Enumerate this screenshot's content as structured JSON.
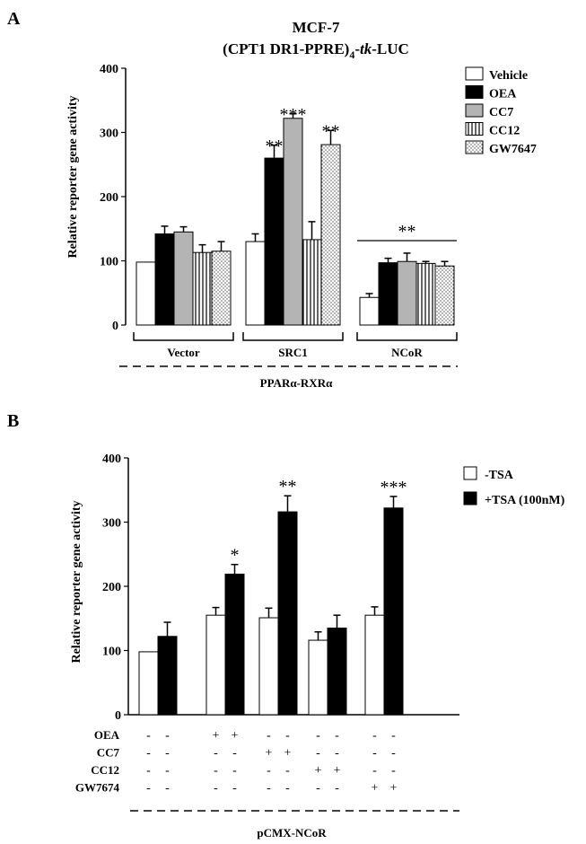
{
  "chart_data": [
    {
      "panel": "A",
      "type": "bar",
      "title": "MCF-7",
      "subtitle": {
        "pre": "(CPT1 DR1-PPRE)",
        "sub": "4",
        "dash1": "-",
        "italic": "tk",
        "post": "-LUC"
      },
      "ylabel": "Relative reporter gene activity",
      "ylim": [
        0,
        400
      ],
      "yticks": [
        "0",
        "100",
        "200",
        "300",
        "400"
      ],
      "groups": [
        "Vector",
        "SRC1",
        "NCoR"
      ],
      "bottom_label": "PPARα-RXRα",
      "legend_position": "top-right",
      "series": [
        {
          "name": "Vehicle",
          "fill": "white",
          "values": [
            98,
            130,
            43
          ],
          "errors": [
            0,
            12,
            6
          ]
        },
        {
          "name": "OEA",
          "fill": "black",
          "values": [
            142,
            260,
            97
          ],
          "errors": [
            12,
            20,
            7
          ]
        },
        {
          "name": "CC7",
          "fill": "gray",
          "values": [
            145,
            322,
            99
          ],
          "errors": [
            8,
            7,
            13
          ]
        },
        {
          "name": "CC12",
          "fill": "stripes",
          "values": [
            113,
            133,
            96
          ],
          "errors": [
            12,
            28,
            3
          ]
        },
        {
          "name": "GW7647",
          "fill": "dots",
          "values": [
            115,
            281,
            92
          ],
          "errors": [
            15,
            22,
            7
          ]
        }
      ],
      "annotations": [
        {
          "group": 1,
          "series": 1,
          "text": "**"
        },
        {
          "group": 1,
          "series": 2,
          "text": "***"
        },
        {
          "group": 1,
          "series": 4,
          "text": "**"
        },
        {
          "group": 2,
          "span": [
            0,
            4
          ],
          "text": "**"
        }
      ]
    },
    {
      "panel": "B",
      "type": "bar",
      "ylabel": "Relative reporter gene activity",
      "ylim": [
        0,
        400
      ],
      "yticks": [
        "0",
        "100",
        "200",
        "300",
        "400"
      ],
      "bottom_label": "pCMX-NCoR",
      "legend_position": "top-right",
      "series": [
        {
          "name": "-TSA",
          "fill": "white",
          "values": [
            98,
            155,
            151,
            116,
            155
          ],
          "errors": [
            0,
            12,
            15,
            13,
            13
          ]
        },
        {
          "name": "+TSA (100nM)",
          "fill": "black",
          "values": [
            122,
            219,
            316,
            135,
            322
          ],
          "errors": [
            22,
            15,
            25,
            20,
            18
          ]
        }
      ],
      "annotations": [
        {
          "group": 1,
          "text": "*"
        },
        {
          "group": 2,
          "text": "**"
        },
        {
          "group": 4,
          "text": "***"
        }
      ],
      "treatment_rows": [
        {
          "label": "OEA",
          "marks": [
            "-",
            "-",
            "+",
            "+",
            "-",
            "-",
            "-",
            "-",
            "-",
            "-"
          ]
        },
        {
          "label": "CC7",
          "marks": [
            "-",
            "-",
            "-",
            "-",
            "+",
            "+",
            "-",
            "-",
            "-",
            "-"
          ]
        },
        {
          "label": "CC12",
          "marks": [
            "-",
            "-",
            "-",
            "-",
            "-",
            "-",
            "+",
            "+",
            "-",
            "-"
          ]
        },
        {
          "label": "GW7674",
          "marks": [
            "-",
            "-",
            "-",
            "-",
            "-",
            "-",
            "-",
            "-",
            "+",
            "+"
          ]
        }
      ]
    }
  ],
  "panel_labels": [
    "A",
    "B"
  ]
}
